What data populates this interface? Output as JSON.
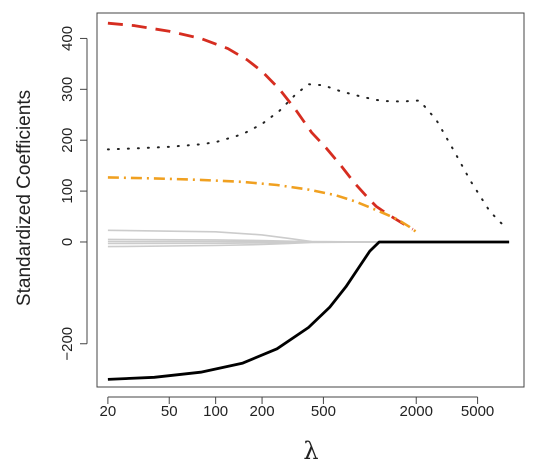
{
  "chart_data": {
    "type": "line",
    "title": "",
    "xlabel": "λ",
    "ylabel": "Standardized Coefficients",
    "x_scale": "log",
    "xlim": [
      17,
      10000
    ],
    "ylim": [
      -285,
      450
    ],
    "x_ticks": [
      20,
      50,
      100,
      200,
      500,
      2000,
      5000
    ],
    "x_tick_labels": [
      "20",
      "50",
      "100",
      "200",
      "500",
      "2000",
      "5000"
    ],
    "y_ticks": [
      -200,
      0,
      100,
      200,
      300,
      400
    ],
    "y_tick_labels": [
      "−200",
      "0",
      "100",
      "200",
      "300",
      "400"
    ],
    "grid": false,
    "legend": "none",
    "series": [
      {
        "color": "#d62d20",
        "dash": "long-dash",
        "width": 2.8,
        "x": [
          20,
          30,
          50,
          80,
          120,
          160,
          200,
          260,
          330,
          420,
          520,
          650,
          800,
          950,
          1100,
          1300,
          1600,
          1900
        ],
        "y": [
          430,
          425,
          414,
          400,
          380,
          358,
          335,
          300,
          260,
          215,
          185,
          150,
          115,
          90,
          70,
          55,
          38,
          25
        ]
      },
      {
        "color": "#222222",
        "dash": "dotted",
        "width": 2.0,
        "x": [
          20,
          30,
          50,
          80,
          100,
          150,
          200,
          260,
          330,
          400,
          500,
          650,
          900,
          1200,
          1600,
          2100,
          2700,
          3500,
          4500,
          6000,
          7500
        ],
        "y": [
          182,
          184,
          187,
          192,
          196,
          212,
          232,
          258,
          290,
          310,
          308,
          296,
          285,
          277,
          276,
          278,
          240,
          180,
          120,
          60,
          30
        ]
      },
      {
        "color": "#f0a020",
        "dash": "dash-dot",
        "width": 2.6,
        "x": [
          20,
          40,
          80,
          150,
          250,
          400,
          600,
          800,
          1000,
          1200,
          1500,
          1800,
          2100
        ],
        "y": [
          127,
          125,
          122,
          118,
          112,
          103,
          92,
          80,
          68,
          58,
          45,
          30,
          15
        ]
      },
      {
        "color": "#000000",
        "dash": "solid",
        "width": 2.8,
        "x": [
          20,
          40,
          80,
          150,
          250,
          400,
          550,
          700,
          850,
          1000,
          1150,
          1300,
          1600,
          2500,
          5000,
          8000
        ],
        "y": [
          -270,
          -266,
          -256,
          -238,
          -210,
          -168,
          -128,
          -88,
          -50,
          -18,
          0,
          0,
          0,
          0,
          0,
          0
        ]
      },
      {
        "color": "#cccccc",
        "dash": "solid",
        "width": 1.6,
        "x": [
          20,
          100,
          200,
          300,
          420,
          1200,
          8000
        ],
        "y": [
          23,
          20,
          14,
          7,
          1,
          0,
          0
        ]
      },
      {
        "color": "#cccccc",
        "dash": "solid",
        "width": 1.6,
        "x": [
          20,
          100,
          200,
          300,
          420,
          1200,
          8000
        ],
        "y": [
          5,
          4,
          3,
          1.5,
          0.5,
          0,
          0
        ]
      },
      {
        "color": "#cccccc",
        "dash": "solid",
        "width": 1.6,
        "x": [
          20,
          100,
          200,
          300,
          420,
          1200,
          8000
        ],
        "y": [
          1,
          1,
          0.5,
          0.2,
          0,
          0,
          0
        ]
      },
      {
        "color": "#cccccc",
        "dash": "solid",
        "width": 1.6,
        "x": [
          20,
          100,
          200,
          300,
          420,
          1200,
          8000
        ],
        "y": [
          -3,
          -2.5,
          -1.8,
          -1,
          -0.3,
          0,
          0
        ]
      },
      {
        "color": "#cccccc",
        "dash": "solid",
        "width": 1.6,
        "x": [
          20,
          100,
          200,
          300,
          420,
          1200,
          8000
        ],
        "y": [
          -9,
          -7,
          -5,
          -3,
          -1,
          0,
          0
        ]
      }
    ]
  }
}
